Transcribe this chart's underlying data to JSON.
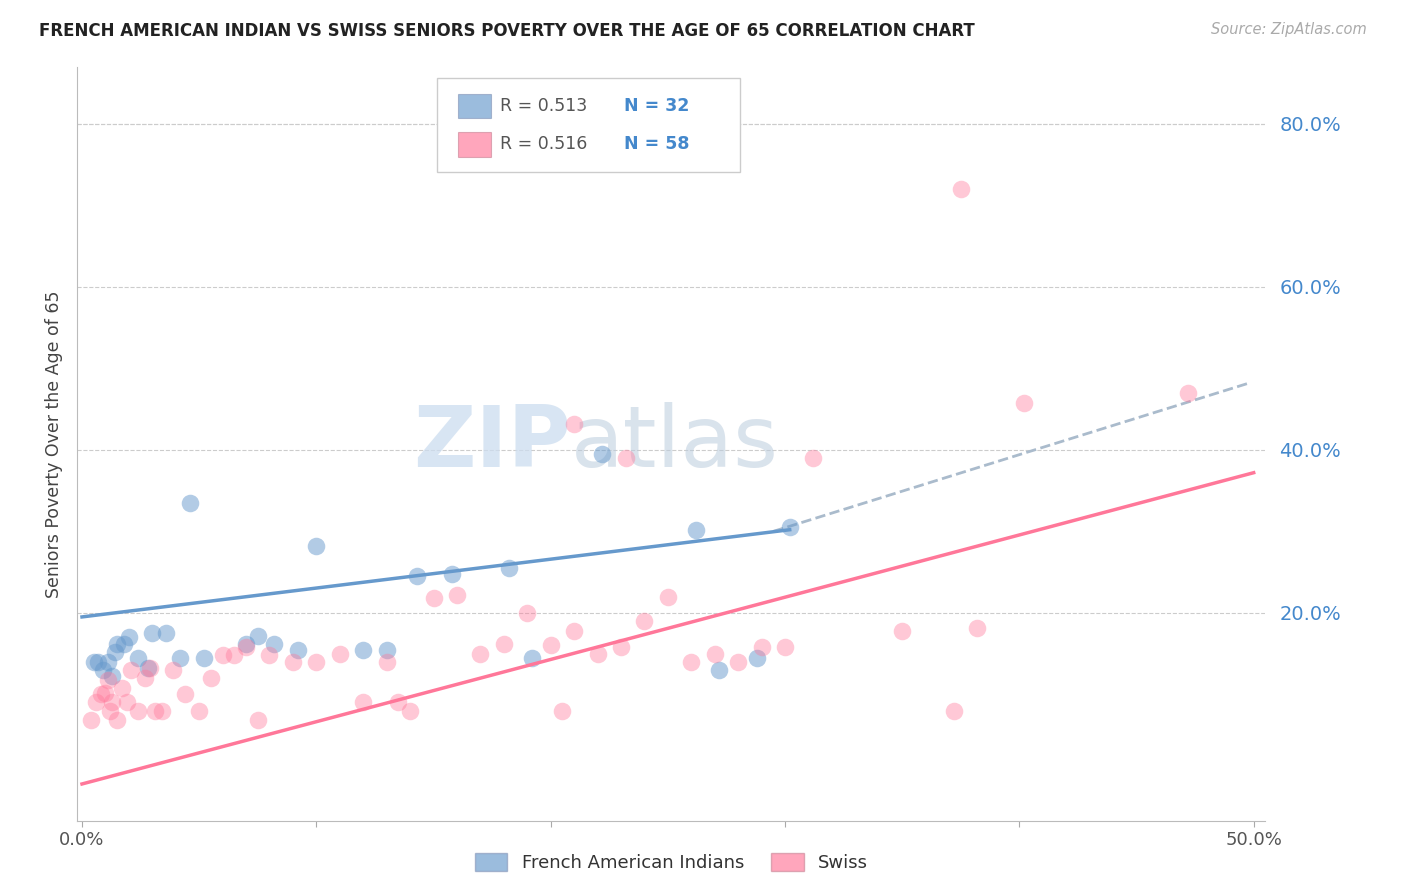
{
  "title": "FRENCH AMERICAN INDIAN VS SWISS SENIORS POVERTY OVER THE AGE OF 65 CORRELATION CHART",
  "source": "Source: ZipAtlas.com",
  "ylabel": "Seniors Poverty Over the Age of 65",
  "xlim": [
    -0.002,
    0.505
  ],
  "ylim": [
    -0.055,
    0.87
  ],
  "yticks": [
    0.0,
    0.2,
    0.4,
    0.6,
    0.8
  ],
  "ytick_labels": [
    "",
    "20.0%",
    "40.0%",
    "60.0%",
    "80.0%"
  ],
  "xticks": [
    0.0,
    0.1,
    0.2,
    0.3,
    0.4,
    0.5
  ],
  "xtick_labels": [
    "0.0%",
    "",
    "",
    "",
    "",
    "50.0%"
  ],
  "legend_R1": "R = 0.513",
  "legend_N1": "N = 32",
  "legend_R2": "R = 0.516",
  "legend_N2": "N = 58",
  "color_blue": "#6699CC",
  "color_pink": "#FF7799",
  "color_dashed": "#AABBCC",
  "watermark_zip": "ZIP",
  "watermark_atlas": "atlas",
  "blue_points": [
    [
      0.005,
      0.14
    ],
    [
      0.007,
      0.14
    ],
    [
      0.009,
      0.13
    ],
    [
      0.011,
      0.14
    ],
    [
      0.013,
      0.122
    ],
    [
      0.014,
      0.152
    ],
    [
      0.015,
      0.162
    ],
    [
      0.018,
      0.162
    ],
    [
      0.02,
      0.17
    ],
    [
      0.024,
      0.145
    ],
    [
      0.028,
      0.132
    ],
    [
      0.03,
      0.175
    ],
    [
      0.036,
      0.175
    ],
    [
      0.042,
      0.145
    ],
    [
      0.046,
      0.335
    ],
    [
      0.052,
      0.145
    ],
    [
      0.07,
      0.162
    ],
    [
      0.075,
      0.172
    ],
    [
      0.082,
      0.162
    ],
    [
      0.092,
      0.155
    ],
    [
      0.1,
      0.282
    ],
    [
      0.12,
      0.155
    ],
    [
      0.13,
      0.155
    ],
    [
      0.143,
      0.245
    ],
    [
      0.158,
      0.248
    ],
    [
      0.182,
      0.255
    ],
    [
      0.192,
      0.145
    ],
    [
      0.222,
      0.395
    ],
    [
      0.262,
      0.302
    ],
    [
      0.272,
      0.13
    ],
    [
      0.288,
      0.145
    ],
    [
      0.302,
      0.305
    ]
  ],
  "pink_points": [
    [
      0.004,
      0.068
    ],
    [
      0.006,
      0.09
    ],
    [
      0.008,
      0.1
    ],
    [
      0.01,
      0.102
    ],
    [
      0.011,
      0.118
    ],
    [
      0.012,
      0.08
    ],
    [
      0.013,
      0.09
    ],
    [
      0.015,
      0.068
    ],
    [
      0.017,
      0.108
    ],
    [
      0.019,
      0.09
    ],
    [
      0.021,
      0.13
    ],
    [
      0.024,
      0.08
    ],
    [
      0.027,
      0.12
    ],
    [
      0.029,
      0.132
    ],
    [
      0.031,
      0.08
    ],
    [
      0.034,
      0.08
    ],
    [
      0.039,
      0.13
    ],
    [
      0.044,
      0.1
    ],
    [
      0.05,
      0.08
    ],
    [
      0.055,
      0.12
    ],
    [
      0.06,
      0.148
    ],
    [
      0.065,
      0.148
    ],
    [
      0.07,
      0.158
    ],
    [
      0.075,
      0.068
    ],
    [
      0.08,
      0.148
    ],
    [
      0.09,
      0.14
    ],
    [
      0.1,
      0.14
    ],
    [
      0.11,
      0.15
    ],
    [
      0.12,
      0.09
    ],
    [
      0.13,
      0.14
    ],
    [
      0.135,
      0.09
    ],
    [
      0.14,
      0.08
    ],
    [
      0.15,
      0.218
    ],
    [
      0.16,
      0.222
    ],
    [
      0.17,
      0.15
    ],
    [
      0.18,
      0.162
    ],
    [
      0.19,
      0.2
    ],
    [
      0.2,
      0.16
    ],
    [
      0.21,
      0.178
    ],
    [
      0.22,
      0.15
    ],
    [
      0.23,
      0.158
    ],
    [
      0.24,
      0.19
    ],
    [
      0.25,
      0.22
    ],
    [
      0.26,
      0.14
    ],
    [
      0.27,
      0.15
    ],
    [
      0.28,
      0.14
    ],
    [
      0.29,
      0.158
    ],
    [
      0.3,
      0.158
    ],
    [
      0.21,
      0.432
    ],
    [
      0.232,
      0.39
    ],
    [
      0.205,
      0.08
    ],
    [
      0.312,
      0.39
    ],
    [
      0.35,
      0.178
    ],
    [
      0.372,
      0.08
    ],
    [
      0.382,
      0.182
    ],
    [
      0.402,
      0.458
    ],
    [
      0.472,
      0.47
    ],
    [
      0.375,
      0.72
    ]
  ],
  "blue_line": [
    0.0,
    0.195,
    0.302,
    0.302
  ],
  "pink_line": [
    0.0,
    -0.01,
    0.5,
    0.372
  ],
  "dashed_line": [
    0.295,
    0.3,
    0.498,
    0.482
  ]
}
